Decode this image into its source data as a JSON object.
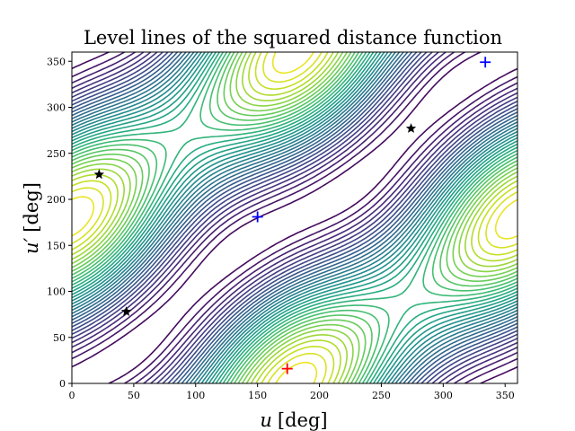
{
  "chart_data": {
    "type": "contour",
    "title": "Level lines of the squared distance function",
    "xlabel_var": "u",
    "ylabel_var": "u′",
    "unit": "[deg]",
    "xlim": [
      0,
      360
    ],
    "ylim": [
      0,
      360
    ],
    "xticks": [
      0,
      50,
      100,
      150,
      200,
      250,
      300,
      350
    ],
    "yticks": [
      0,
      50,
      100,
      150,
      200,
      250,
      300,
      350
    ],
    "grid": false,
    "colormap": "viridis",
    "colors": {
      "min_marker": "#0000ff",
      "global_min_marker": "#ff0000",
      "saddle_marker": "#000000"
    },
    "minima_markers": [
      {
        "u": 150,
        "u_prime": 181,
        "color": "blue",
        "symbol": "+"
      },
      {
        "u": 334,
        "u_prime": 349,
        "color": "blue",
        "symbol": "+"
      },
      {
        "u": 174,
        "u_prime": 16,
        "color": "red",
        "symbol": "+"
      }
    ],
    "saddle_markers": [
      {
        "u": 22,
        "u_prime": 227,
        "symbol": "star"
      },
      {
        "u": 44,
        "u_prime": 78,
        "symbol": "star"
      },
      {
        "u": 274,
        "u_prime": 277,
        "symbol": "star"
      }
    ]
  }
}
